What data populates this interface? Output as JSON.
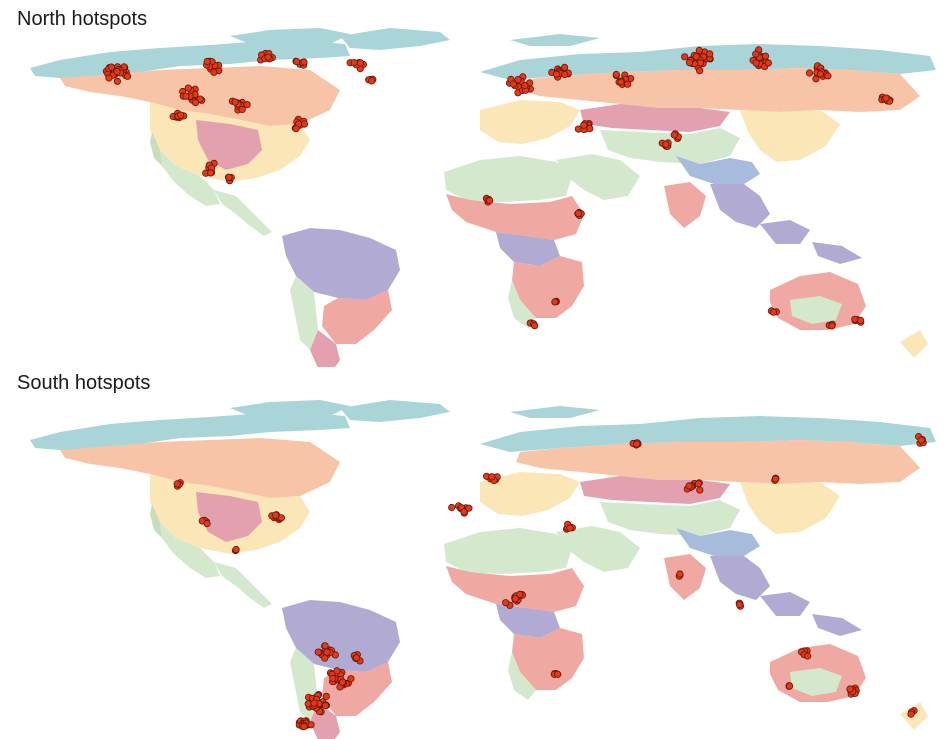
{
  "panels": {
    "north": {
      "title": "North hotspots"
    },
    "south": {
      "title": "South hotspots"
    }
  },
  "colors": {
    "tundra": "#a9d4d8",
    "boreal": "#f7c4a8",
    "temperate": "#fbe6b8",
    "grassland": "#e3a0ae",
    "tropical_savanna": "#efa8a2",
    "tropical_forest": "#b1abd3",
    "desert": "#d3e8cd",
    "mediterranean": "#c8ddb8",
    "montane": "#a7bcdc",
    "hotspot_fill": "#e03a18",
    "hotspot_stroke": "#6a1408",
    "title_text": "#1a1a1a"
  }
}
